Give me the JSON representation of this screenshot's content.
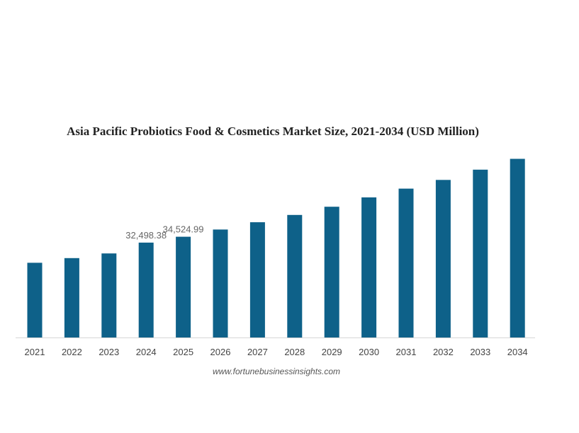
{
  "chart_data": {
    "type": "bar",
    "title": "Asia Pacific Probiotics Food & Cosmetics Market Size, 2021-2034 (USD Million)",
    "xlabel": "",
    "ylabel": "",
    "categories": [
      "2021",
      "2022",
      "2023",
      "2024",
      "2025",
      "2026",
      "2027",
      "2028",
      "2029",
      "2030",
      "2031",
      "2032",
      "2033",
      "2034"
    ],
    "values": [
      25600,
      27200,
      28800,
      32498.38,
      34524.99,
      37000,
      39500,
      42000,
      44800,
      48000,
      51000,
      54000,
      57500,
      61200
    ],
    "data_labels": [
      {
        "category": "2024",
        "text": "32,498.38"
      },
      {
        "category": "2025",
        "text": "34,524.99"
      }
    ],
    "ylim": [
      0,
      64000
    ],
    "grid": false,
    "legend": "none",
    "bar_color": "#0e6189",
    "source": "www.fortunebusinessinsights.com"
  }
}
